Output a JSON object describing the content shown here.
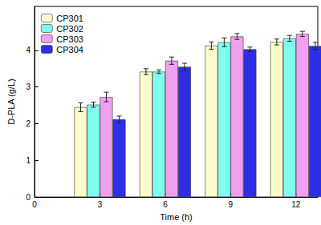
{
  "chart_data": {
    "type": "bar",
    "x_label": "Time (h)",
    "y_label": "D-PLA (g/L)",
    "x": [
      3,
      6,
      9,
      12
    ],
    "series": [
      {
        "name": "CP301",
        "color": "#fdfccb",
        "values": [
          2.45,
          3.42,
          4.13,
          4.23
        ],
        "errors": [
          0.12,
          0.08,
          0.1,
          0.08
        ]
      },
      {
        "name": "CP302",
        "color": "#80fff0",
        "values": [
          2.52,
          3.42,
          4.22,
          4.33
        ],
        "errors": [
          0.07,
          0.05,
          0.12,
          0.08
        ]
      },
      {
        "name": "CP303",
        "color": "#f0a0f0",
        "values": [
          2.73,
          3.72,
          4.38,
          4.45
        ],
        "errors": [
          0.13,
          0.1,
          0.08,
          0.07
        ]
      },
      {
        "name": "CP304",
        "color": "#2e2ee6",
        "values": [
          2.12,
          3.55,
          4.03,
          4.12
        ],
        "errors": [
          0.09,
          0.1,
          0.06,
          0.1
        ]
      }
    ],
    "xlim": [
      0,
      13
    ],
    "xticks": [
      0,
      3,
      6,
      9,
      12
    ],
    "ylim": [
      0,
      5.2
    ],
    "yticks": [
      0,
      1,
      2,
      3,
      4
    ],
    "grid": false,
    "legend": "upper left"
  }
}
